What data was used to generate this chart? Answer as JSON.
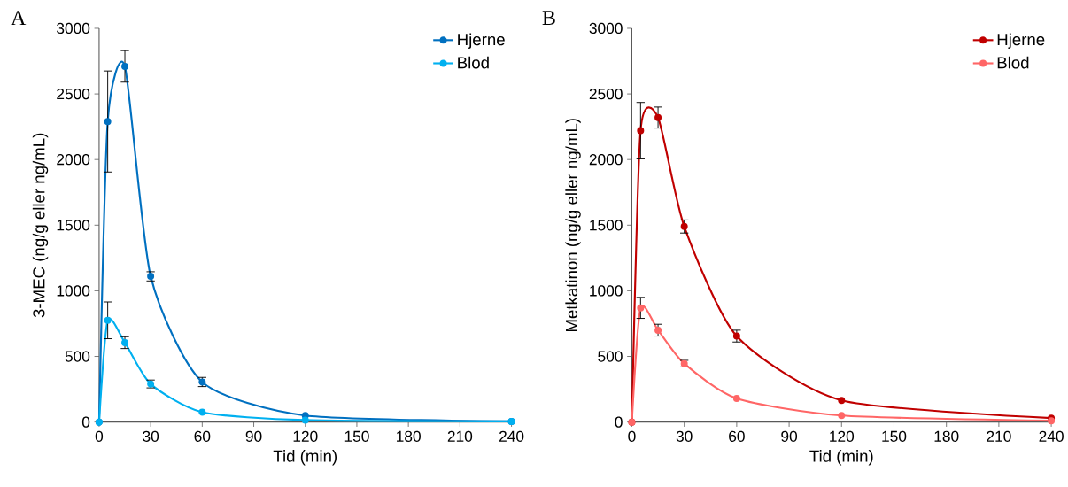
{
  "chart_data": [
    {
      "type": "line",
      "annotations": [
        "A"
      ],
      "xlabel": "Tid (min)",
      "ylabel": "3-MEC (ng/g eller ng/mL)",
      "x": [
        0,
        5,
        15,
        30,
        60,
        120,
        240
      ],
      "xlim": [
        0,
        240
      ],
      "xticks": [
        0,
        30,
        60,
        90,
        120,
        150,
        180,
        210,
        240
      ],
      "ylim": [
        0,
        3000
      ],
      "yticks": [
        0,
        500,
        1000,
        1500,
        2000,
        2500,
        3000
      ],
      "marker": "circle",
      "legend": "top right",
      "grid": false,
      "series": [
        {
          "name": "Hjerne",
          "color": "#0070c0",
          "values": [
            0,
            2290,
            2710,
            1110,
            305,
            50,
            5
          ],
          "errors": [
            null,
            385,
            120,
            35,
            35,
            null,
            null
          ]
        },
        {
          "name": "Blod",
          "color": "#00b0f0",
          "values": [
            0,
            775,
            605,
            290,
            75,
            15,
            5
          ],
          "errors": [
            null,
            140,
            45,
            30,
            null,
            null,
            null
          ]
        }
      ]
    },
    {
      "type": "line",
      "annotations": [
        "B"
      ],
      "xlabel": "Tid (min)",
      "ylabel": "Metkatinon (ng/g eller ng/mL)",
      "x": [
        0,
        5,
        15,
        30,
        60,
        120,
        240
      ],
      "xlim": [
        0,
        240
      ],
      "xticks": [
        0,
        30,
        60,
        90,
        120,
        150,
        180,
        210,
        240
      ],
      "ylim": [
        0,
        3000
      ],
      "yticks": [
        0,
        500,
        1000,
        1500,
        2000,
        2500,
        3000
      ],
      "marker": "circle",
      "legend": "top right",
      "grid": false,
      "series": [
        {
          "name": "Hjerne",
          "color": "#c00000",
          "values": [
            0,
            2220,
            2320,
            1490,
            655,
            165,
            30
          ],
          "errors": [
            null,
            215,
            80,
            50,
            45,
            null,
            null
          ]
        },
        {
          "name": "Blod",
          "color": "#ff6666",
          "values": [
            0,
            870,
            700,
            445,
            180,
            50,
            10
          ],
          "errors": [
            null,
            80,
            45,
            25,
            null,
            null,
            null
          ]
        }
      ]
    }
  ]
}
